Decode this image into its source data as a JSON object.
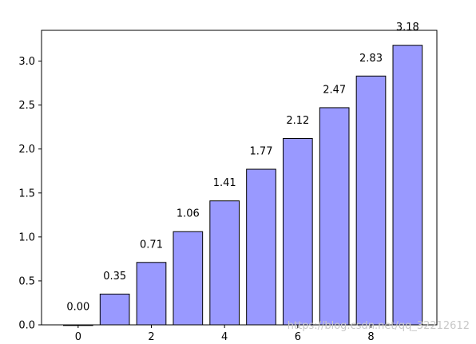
{
  "chart_data": {
    "type": "bar",
    "x": [
      0,
      1,
      2,
      3,
      4,
      5,
      6,
      7,
      8,
      9
    ],
    "values": [
      0.0,
      0.35,
      0.71,
      1.06,
      1.41,
      1.77,
      2.12,
      2.47,
      2.83,
      3.18
    ],
    "value_labels": [
      "0.00",
      "0.35",
      "0.71",
      "1.06",
      "1.41",
      "1.77",
      "2.12",
      "2.47",
      "2.83",
      "3.18"
    ],
    "bar_width": 0.8,
    "xlim": [
      -1.0,
      9.8
    ],
    "ylim": [
      0,
      3.35
    ],
    "xticks": [
      0,
      2,
      4,
      6,
      8
    ],
    "xtick_labels": [
      "0",
      "2",
      "4",
      "6",
      "8"
    ],
    "yticks": [
      0.0,
      0.5,
      1.0,
      1.5,
      2.0,
      2.5,
      3.0
    ],
    "ytick_labels": [
      "0.0",
      "0.5",
      "1.0",
      "1.5",
      "2.0",
      "2.5",
      "3.0"
    ],
    "title": "",
    "xlabel": "",
    "ylabel": "",
    "grid": false,
    "bar_color": "#9999ff",
    "edge_color": "#000000"
  },
  "watermark": {
    "text": "https://blog.csdn.net/qq_32212612"
  }
}
